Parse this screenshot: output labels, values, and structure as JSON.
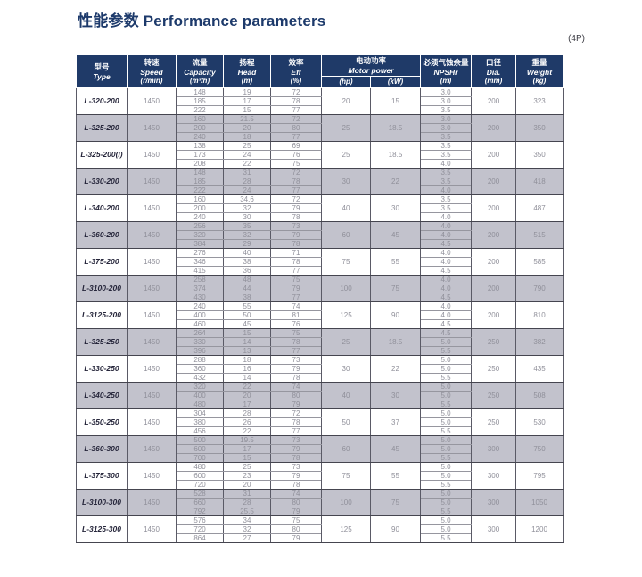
{
  "page": {
    "title": "性能参数 Performance parameters",
    "corner_note": "(4P)"
  },
  "colors": {
    "header_bg": "#1f3a68",
    "title_text": "#1d3a6b",
    "shaded_row_bg": "#c2c2cc",
    "data_text": "#90909a",
    "dark_border": "#45454f"
  },
  "table": {
    "headers": {
      "type": {
        "zh": "型号",
        "en": "Type"
      },
      "speed": {
        "zh": "转速",
        "en": "Speed",
        "unit": "(r/min)"
      },
      "capacity": {
        "zh": "流量",
        "en": "Capacity",
        "unit": "(m³/h)"
      },
      "head": {
        "zh": "扬程",
        "en": "Head",
        "unit": "(m)"
      },
      "eff": {
        "zh": "效率",
        "en": "Eff",
        "unit": "(%)"
      },
      "motor_power": {
        "zh": "电动功率",
        "en": "Motor power",
        "sub_hp": "(hp)",
        "sub_kw": "(kW)"
      },
      "npshr": {
        "zh": "必须气蚀余量",
        "en": "NPSHr",
        "unit": "(m)"
      },
      "dia": {
        "zh": "口径",
        "en": "Dia.",
        "unit": "(mm)"
      },
      "weight": {
        "zh": "重量",
        "en": "Weight",
        "unit": "(kg)"
      }
    },
    "rows": [
      {
        "type": "L-320-200",
        "speed": "1450",
        "capacity": [
          "148",
          "185",
          "222"
        ],
        "head": [
          "19",
          "17",
          "15"
        ],
        "eff": [
          "72",
          "78",
          "77"
        ],
        "hp": "20",
        "kw": "15",
        "npshr": [
          "3.0",
          "3.0",
          "3.5"
        ],
        "dia": "200",
        "weight": "323",
        "shaded": false
      },
      {
        "type": "L-325-200",
        "speed": "1450",
        "capacity": [
          "160",
          "200",
          "240"
        ],
        "head": [
          "21.5",
          "20",
          "18"
        ],
        "eff": [
          "72",
          "80",
          "77"
        ],
        "hp": "25",
        "kw": "18.5",
        "npshr": [
          "3.0",
          "3.0",
          "3.5"
        ],
        "dia": "200",
        "weight": "350",
        "shaded": true
      },
      {
        "type": "L-325-200(I)",
        "speed": "1450",
        "capacity": [
          "138",
          "173",
          "208"
        ],
        "head": [
          "25",
          "24",
          "22"
        ],
        "eff": [
          "69",
          "76",
          "75"
        ],
        "hp": "25",
        "kw": "18.5",
        "npshr": [
          "3.5",
          "3.5",
          "4.0"
        ],
        "dia": "200",
        "weight": "350",
        "shaded": false
      },
      {
        "type": "L-330-200",
        "speed": "1450",
        "capacity": [
          "148",
          "185",
          "222"
        ],
        "head": [
          "31",
          "28",
          "24"
        ],
        "eff": [
          "72",
          "78",
          "77"
        ],
        "hp": "30",
        "kw": "22",
        "npshr": [
          "3.5",
          "3.5",
          "4.0"
        ],
        "dia": "200",
        "weight": "418",
        "shaded": true
      },
      {
        "type": "L-340-200",
        "speed": "1450",
        "capacity": [
          "160",
          "200",
          "240"
        ],
        "head": [
          "34.6",
          "32",
          "30"
        ],
        "eff": [
          "72",
          "79",
          "78"
        ],
        "hp": "40",
        "kw": "30",
        "npshr": [
          "3.5",
          "3.5",
          "4.0"
        ],
        "dia": "200",
        "weight": "487",
        "shaded": false
      },
      {
        "type": "L-360-200",
        "speed": "1450",
        "capacity": [
          "256",
          "320",
          "384"
        ],
        "head": [
          "35",
          "32",
          "29"
        ],
        "eff": [
          "73",
          "79",
          "78"
        ],
        "hp": "60",
        "kw": "45",
        "npshr": [
          "4.0",
          "4.0",
          "4.5"
        ],
        "dia": "200",
        "weight": "515",
        "shaded": true
      },
      {
        "type": "L-375-200",
        "speed": "1450",
        "capacity": [
          "276",
          "346",
          "415"
        ],
        "head": [
          "40",
          "38",
          "36"
        ],
        "eff": [
          "71",
          "78",
          "77"
        ],
        "hp": "75",
        "kw": "55",
        "npshr": [
          "4.0",
          "4.0",
          "4.5"
        ],
        "dia": "200",
        "weight": "585",
        "shaded": false
      },
      {
        "type": "L-3100-200",
        "speed": "1450",
        "capacity": [
          "258",
          "374",
          "430"
        ],
        "head": [
          "48",
          "44",
          "38"
        ],
        "eff": [
          "75",
          "79",
          "77"
        ],
        "hp": "100",
        "kw": "75",
        "npshr": [
          "4.0",
          "4.0",
          "4.5"
        ],
        "dia": "200",
        "weight": "790",
        "shaded": true
      },
      {
        "type": "L-3125-200",
        "speed": "1450",
        "capacity": [
          "240",
          "400",
          "460"
        ],
        "head": [
          "55",
          "50",
          "45"
        ],
        "eff": [
          "74",
          "81",
          "76"
        ],
        "hp": "125",
        "kw": "90",
        "npshr": [
          "4.0",
          "4.0",
          "4.5"
        ],
        "dia": "200",
        "weight": "810",
        "shaded": false
      },
      {
        "type": "L-325-250",
        "speed": "1450",
        "capacity": [
          "264",
          "330",
          "396"
        ],
        "head": [
          "15",
          "14",
          "13"
        ],
        "eff": [
          "75",
          "78",
          "77"
        ],
        "hp": "25",
        "kw": "18.5",
        "npshr": [
          "4.5",
          "5.0",
          "5.5"
        ],
        "dia": "250",
        "weight": "382",
        "shaded": true
      },
      {
        "type": "L-330-250",
        "speed": "1450",
        "capacity": [
          "288",
          "360",
          "432"
        ],
        "head": [
          "18",
          "16",
          "14"
        ],
        "eff": [
          "73",
          "79",
          "78"
        ],
        "hp": "30",
        "kw": "22",
        "npshr": [
          "5.0",
          "5.0",
          "5.5"
        ],
        "dia": "250",
        "weight": "435",
        "shaded": false
      },
      {
        "type": "L-340-250",
        "speed": "1450",
        "capacity": [
          "320",
          "400",
          "480"
        ],
        "head": [
          "22",
          "20",
          "17"
        ],
        "eff": [
          "74",
          "80",
          "79"
        ],
        "hp": "40",
        "kw": "30",
        "npshr": [
          "5.0",
          "5.0",
          "5.5"
        ],
        "dia": "250",
        "weight": "508",
        "shaded": true
      },
      {
        "type": "L-350-250",
        "speed": "1450",
        "capacity": [
          "304",
          "380",
          "456"
        ],
        "head": [
          "28",
          "26",
          "22"
        ],
        "eff": [
          "72",
          "78",
          "77"
        ],
        "hp": "50",
        "kw": "37",
        "npshr": [
          "5.0",
          "5.0",
          "5.5"
        ],
        "dia": "250",
        "weight": "530",
        "shaded": false
      },
      {
        "type": "L-360-300",
        "speed": "1450",
        "capacity": [
          "500",
          "600",
          "700"
        ],
        "head": [
          "19.5",
          "17",
          "15"
        ],
        "eff": [
          "73",
          "79",
          "78"
        ],
        "hp": "60",
        "kw": "45",
        "npshr": [
          "5.0",
          "5.0",
          "5.5"
        ],
        "dia": "300",
        "weight": "750",
        "shaded": true
      },
      {
        "type": "L-375-300",
        "speed": "1450",
        "capacity": [
          "480",
          "600",
          "720"
        ],
        "head": [
          "25",
          "23",
          "20"
        ],
        "eff": [
          "73",
          "79",
          "78"
        ],
        "hp": "75",
        "kw": "55",
        "npshr": [
          "5.0",
          "5.0",
          "5.5"
        ],
        "dia": "300",
        "weight": "795",
        "shaded": false
      },
      {
        "type": "L-3100-300",
        "speed": "1450",
        "capacity": [
          "528",
          "660",
          "792"
        ],
        "head": [
          "31",
          "28",
          "25.5"
        ],
        "eff": [
          "74",
          "80",
          "79"
        ],
        "hp": "100",
        "kw": "75",
        "npshr": [
          "5.0",
          "5.0",
          "5.5"
        ],
        "dia": "300",
        "weight": "1050",
        "shaded": true
      },
      {
        "type": "L-3125-300",
        "speed": "1450",
        "capacity": [
          "576",
          "720",
          "864"
        ],
        "head": [
          "34",
          "32",
          "27"
        ],
        "eff": [
          "75",
          "80",
          "79"
        ],
        "hp": "125",
        "kw": "90",
        "npshr": [
          "5.0",
          "5.0",
          "5.5"
        ],
        "dia": "300",
        "weight": "1200",
        "shaded": false
      }
    ]
  }
}
